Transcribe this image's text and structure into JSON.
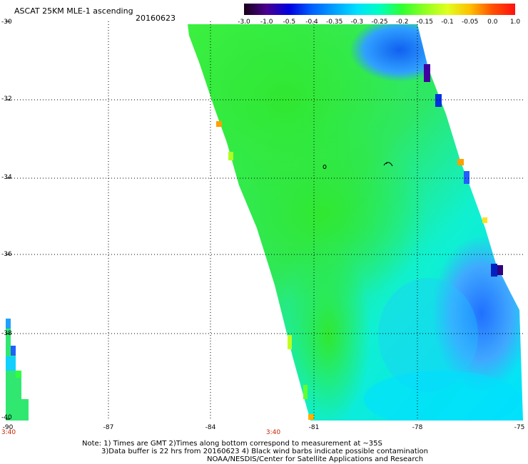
{
  "title": "ASCAT 25KM MLE-1 ascending",
  "date": "20160623",
  "colorbar": {
    "labels": [
      "-3.0",
      "-1.0",
      "-0.5",
      "-0.4",
      "-0.35",
      "-0.3",
      "-0.25",
      "-0.2",
      "-0.15",
      "-0.1",
      "-0.05",
      "0.0",
      "1.0"
    ],
    "colors": [
      "#1a0018",
      "#4a0090",
      "#0000e0",
      "#0060ff",
      "#00a0ff",
      "#00e0ff",
      "#00ffc0",
      "#30ff30",
      "#90ff20",
      "#e0ff20",
      "#ffc000",
      "#ff5000",
      "#ff1010"
    ]
  },
  "axes": {
    "y_labels": [
      "-30",
      "-32",
      "-34",
      "-36",
      "-38",
      "-40"
    ],
    "x_labels": [
      "-90",
      "-87",
      "-84",
      "-81",
      "-78",
      "-75"
    ],
    "time_labels": [
      "3:40",
      "3:40"
    ]
  },
  "notes": {
    "line1": "Note: 1) Times are GMT 2)Times along bottom correspond to measurement at ~35S",
    "line2": "3)Data buffer is 22 hrs from 20160623 4) Black wind barbs indicate possible contamination",
    "line3": "NOAA/NESDIS/Center for Satellite Applications and Research"
  }
}
